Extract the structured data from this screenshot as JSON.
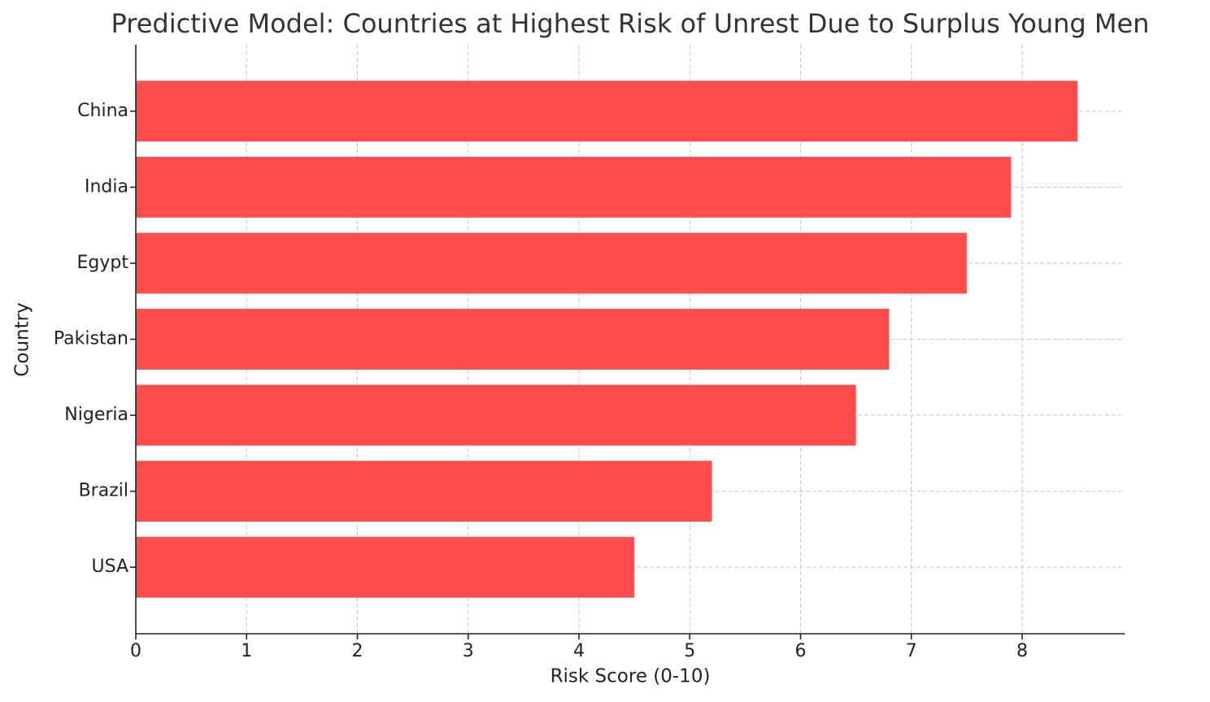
{
  "chart_data": {
    "type": "barh",
    "title": "Predictive Model: Countries at Highest Risk of Unrest Due to Surplus Young Men",
    "x_label": "Risk Score (0-10)",
    "y_label": "Country",
    "categories": [
      "China",
      "India",
      "Egypt",
      "Pakistan",
      "Nigeria",
      "Brazil",
      "USA"
    ],
    "values": [
      8.5,
      7.9,
      7.5,
      6.8,
      6.5,
      5.2,
      4.5
    ],
    "color": "#ff4d4d",
    "xlim": [
      0,
      8.925
    ],
    "xticks": [
      0,
      1,
      2,
      3,
      4,
      5,
      6,
      7,
      8
    ],
    "grid": true
  }
}
